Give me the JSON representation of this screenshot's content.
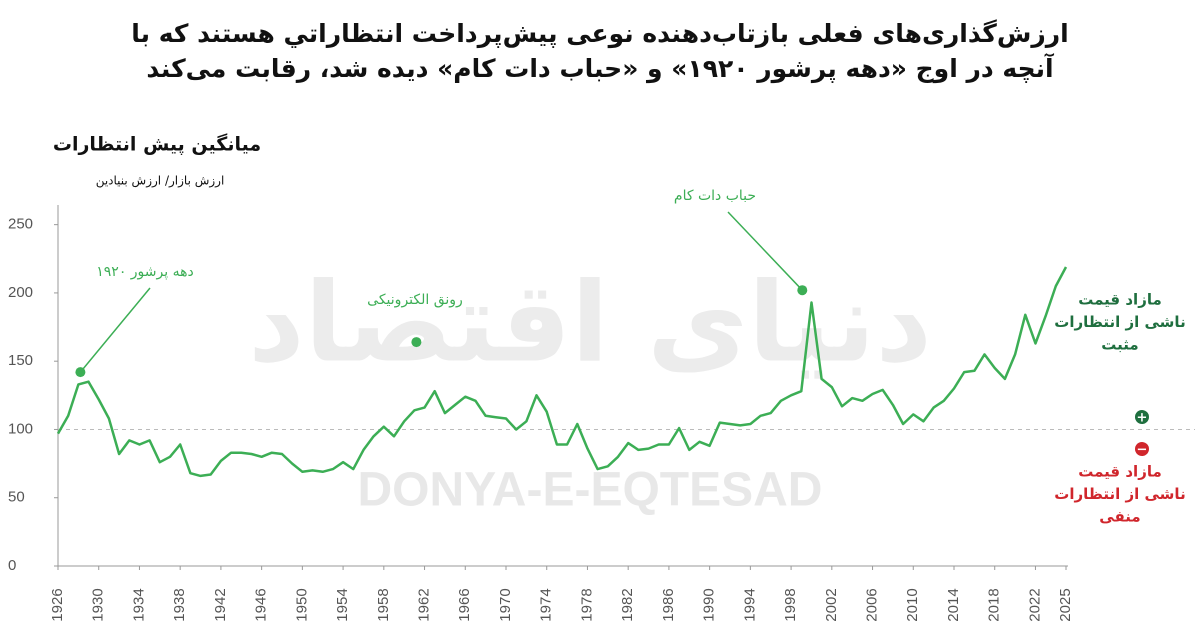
{
  "chart_data": {
    "type": "line",
    "title": [
      "ارزش‌گذاری‌های فعلی بازتاب‌دهنده نوعی پیش‌پرداخت انتظاراتي هستند که با",
      "آنچه در اوج «دهه پرشور ۱۹۲۰» و «حباب دات کام» دیده شد، رقابت می‌کند"
    ],
    "subtitle": "میانگین پیش انتظارات",
    "y_label": "ارزش بازار/ ارزش بنیادین",
    "watermark": [
      "دنیای اقتصاد",
      "DONYA-E-EQTESAD"
    ],
    "color": "#3cae55",
    "x": [
      1926,
      1927,
      1928,
      1929,
      1930,
      1931,
      1932,
      1933,
      1934,
      1935,
      1936,
      1937,
      1938,
      1939,
      1940,
      1941,
      1942,
      1943,
      1944,
      1945,
      1946,
      1947,
      1948,
      1949,
      1950,
      1951,
      1952,
      1953,
      1954,
      1955,
      1956,
      1957,
      1958,
      1959,
      1960,
      1961,
      1962,
      1963,
      1964,
      1965,
      1966,
      1967,
      1968,
      1969,
      1970,
      1971,
      1972,
      1973,
      1974,
      1975,
      1976,
      1977,
      1978,
      1979,
      1980,
      1981,
      1982,
      1983,
      1984,
      1985,
      1986,
      1987,
      1988,
      1989,
      1990,
      1991,
      1992,
      1993,
      1994,
      1995,
      1996,
      1997,
      1998,
      1999,
      2000,
      2001,
      2002,
      2003,
      2004,
      2005,
      2006,
      2007,
      2008,
      2009,
      2010,
      2011,
      2012,
      2013,
      2014,
      2015,
      2016,
      2017,
      2018,
      2019,
      2020,
      2021,
      2022,
      2023,
      2024,
      2025
    ],
    "values": [
      97,
      110,
      133,
      135,
      122,
      108,
      82,
      92,
      89,
      92,
      76,
      80,
      89,
      68,
      66,
      67,
      77,
      83,
      83,
      82,
      80,
      83,
      82,
      75,
      69,
      70,
      69,
      71,
      76,
      71,
      85,
      95,
      102,
      95,
      106,
      114,
      116,
      128,
      112,
      118,
      124,
      121,
      110,
      109,
      108,
      100,
      106,
      125,
      113,
      89,
      89,
      104,
      86,
      71,
      73,
      80,
      90,
      85,
      86,
      89,
      89,
      101,
      85,
      91,
      88,
      105,
      104,
      103,
      104,
      110,
      112,
      121,
      125,
      128,
      193,
      137,
      131,
      117,
      123,
      121,
      126,
      129,
      118,
      104,
      111,
      106,
      116,
      121,
      130,
      142,
      143,
      155,
      145,
      137,
      155,
      184,
      163,
      183,
      205,
      219
    ],
    "xlim": [
      1926,
      2025
    ],
    "xticks": [
      1926,
      1930,
      1934,
      1938,
      1942,
      1946,
      1950,
      1954,
      1958,
      1962,
      1966,
      1970,
      1974,
      1978,
      1982,
      1986,
      1990,
      1994,
      1998,
      2002,
      2006,
      2010,
      2014,
      2018,
      2022,
      2025
    ],
    "ylim": [
      0,
      260
    ],
    "yticks": [
      0,
      50,
      100,
      150,
      200,
      250
    ],
    "reference_line": 100,
    "annotations": [
      {
        "text": "دهه پرشور ۱۹۲۰",
        "x": 1928.2,
        "y": 142
      },
      {
        "text": "رونق الکترونیکی",
        "x": 1961.2,
        "y": 164
      },
      {
        "text": "حباب دات کام",
        "x": 1999.1,
        "y": 202
      }
    ],
    "legend": [
      {
        "lines": [
          "مازاد قیمت",
          "ناشی از انتظارات",
          "مثبت"
        ],
        "symbol": "+",
        "color": "#1f6f3f"
      },
      {
        "lines": [
          "مازاد قیمت",
          "ناشی از انتظارات",
          "منفی"
        ],
        "symbol": "−",
        "color": "#d0262c"
      }
    ]
  }
}
